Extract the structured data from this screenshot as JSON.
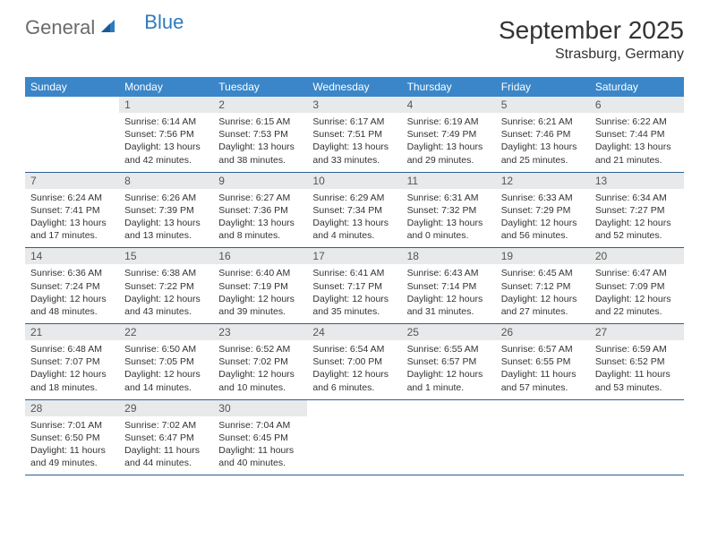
{
  "logo": {
    "general": "General",
    "blue": "Blue"
  },
  "title": "September 2025",
  "location": "Strasburg, Germany",
  "colors": {
    "header_bg": "#3a86c8",
    "header_text": "#ffffff",
    "daynum_bg": "#e7e9ea",
    "border": "#2d5f8f",
    "logo_grey": "#6b6b6b",
    "logo_blue": "#2d7bbf",
    "text": "#333333"
  },
  "day_names": [
    "Sunday",
    "Monday",
    "Tuesday",
    "Wednesday",
    "Thursday",
    "Friday",
    "Saturday"
  ],
  "weeks": [
    [
      null,
      {
        "n": "1",
        "sr": "Sunrise: 6:14 AM",
        "ss": "Sunset: 7:56 PM",
        "dl": "Daylight: 13 hours and 42 minutes."
      },
      {
        "n": "2",
        "sr": "Sunrise: 6:15 AM",
        "ss": "Sunset: 7:53 PM",
        "dl": "Daylight: 13 hours and 38 minutes."
      },
      {
        "n": "3",
        "sr": "Sunrise: 6:17 AM",
        "ss": "Sunset: 7:51 PM",
        "dl": "Daylight: 13 hours and 33 minutes."
      },
      {
        "n": "4",
        "sr": "Sunrise: 6:19 AM",
        "ss": "Sunset: 7:49 PM",
        "dl": "Daylight: 13 hours and 29 minutes."
      },
      {
        "n": "5",
        "sr": "Sunrise: 6:21 AM",
        "ss": "Sunset: 7:46 PM",
        "dl": "Daylight: 13 hours and 25 minutes."
      },
      {
        "n": "6",
        "sr": "Sunrise: 6:22 AM",
        "ss": "Sunset: 7:44 PM",
        "dl": "Daylight: 13 hours and 21 minutes."
      }
    ],
    [
      {
        "n": "7",
        "sr": "Sunrise: 6:24 AM",
        "ss": "Sunset: 7:41 PM",
        "dl": "Daylight: 13 hours and 17 minutes."
      },
      {
        "n": "8",
        "sr": "Sunrise: 6:26 AM",
        "ss": "Sunset: 7:39 PM",
        "dl": "Daylight: 13 hours and 13 minutes."
      },
      {
        "n": "9",
        "sr": "Sunrise: 6:27 AM",
        "ss": "Sunset: 7:36 PM",
        "dl": "Daylight: 13 hours and 8 minutes."
      },
      {
        "n": "10",
        "sr": "Sunrise: 6:29 AM",
        "ss": "Sunset: 7:34 PM",
        "dl": "Daylight: 13 hours and 4 minutes."
      },
      {
        "n": "11",
        "sr": "Sunrise: 6:31 AM",
        "ss": "Sunset: 7:32 PM",
        "dl": "Daylight: 13 hours and 0 minutes."
      },
      {
        "n": "12",
        "sr": "Sunrise: 6:33 AM",
        "ss": "Sunset: 7:29 PM",
        "dl": "Daylight: 12 hours and 56 minutes."
      },
      {
        "n": "13",
        "sr": "Sunrise: 6:34 AM",
        "ss": "Sunset: 7:27 PM",
        "dl": "Daylight: 12 hours and 52 minutes."
      }
    ],
    [
      {
        "n": "14",
        "sr": "Sunrise: 6:36 AM",
        "ss": "Sunset: 7:24 PM",
        "dl": "Daylight: 12 hours and 48 minutes."
      },
      {
        "n": "15",
        "sr": "Sunrise: 6:38 AM",
        "ss": "Sunset: 7:22 PM",
        "dl": "Daylight: 12 hours and 43 minutes."
      },
      {
        "n": "16",
        "sr": "Sunrise: 6:40 AM",
        "ss": "Sunset: 7:19 PM",
        "dl": "Daylight: 12 hours and 39 minutes."
      },
      {
        "n": "17",
        "sr": "Sunrise: 6:41 AM",
        "ss": "Sunset: 7:17 PM",
        "dl": "Daylight: 12 hours and 35 minutes."
      },
      {
        "n": "18",
        "sr": "Sunrise: 6:43 AM",
        "ss": "Sunset: 7:14 PM",
        "dl": "Daylight: 12 hours and 31 minutes."
      },
      {
        "n": "19",
        "sr": "Sunrise: 6:45 AM",
        "ss": "Sunset: 7:12 PM",
        "dl": "Daylight: 12 hours and 27 minutes."
      },
      {
        "n": "20",
        "sr": "Sunrise: 6:47 AM",
        "ss": "Sunset: 7:09 PM",
        "dl": "Daylight: 12 hours and 22 minutes."
      }
    ],
    [
      {
        "n": "21",
        "sr": "Sunrise: 6:48 AM",
        "ss": "Sunset: 7:07 PM",
        "dl": "Daylight: 12 hours and 18 minutes."
      },
      {
        "n": "22",
        "sr": "Sunrise: 6:50 AM",
        "ss": "Sunset: 7:05 PM",
        "dl": "Daylight: 12 hours and 14 minutes."
      },
      {
        "n": "23",
        "sr": "Sunrise: 6:52 AM",
        "ss": "Sunset: 7:02 PM",
        "dl": "Daylight: 12 hours and 10 minutes."
      },
      {
        "n": "24",
        "sr": "Sunrise: 6:54 AM",
        "ss": "Sunset: 7:00 PM",
        "dl": "Daylight: 12 hours and 6 minutes."
      },
      {
        "n": "25",
        "sr": "Sunrise: 6:55 AM",
        "ss": "Sunset: 6:57 PM",
        "dl": "Daylight: 12 hours and 1 minute."
      },
      {
        "n": "26",
        "sr": "Sunrise: 6:57 AM",
        "ss": "Sunset: 6:55 PM",
        "dl": "Daylight: 11 hours and 57 minutes."
      },
      {
        "n": "27",
        "sr": "Sunrise: 6:59 AM",
        "ss": "Sunset: 6:52 PM",
        "dl": "Daylight: 11 hours and 53 minutes."
      }
    ],
    [
      {
        "n": "28",
        "sr": "Sunrise: 7:01 AM",
        "ss": "Sunset: 6:50 PM",
        "dl": "Daylight: 11 hours and 49 minutes."
      },
      {
        "n": "29",
        "sr": "Sunrise: 7:02 AM",
        "ss": "Sunset: 6:47 PM",
        "dl": "Daylight: 11 hours and 44 minutes."
      },
      {
        "n": "30",
        "sr": "Sunrise: 7:04 AM",
        "ss": "Sunset: 6:45 PM",
        "dl": "Daylight: 11 hours and 40 minutes."
      },
      null,
      null,
      null,
      null
    ]
  ]
}
